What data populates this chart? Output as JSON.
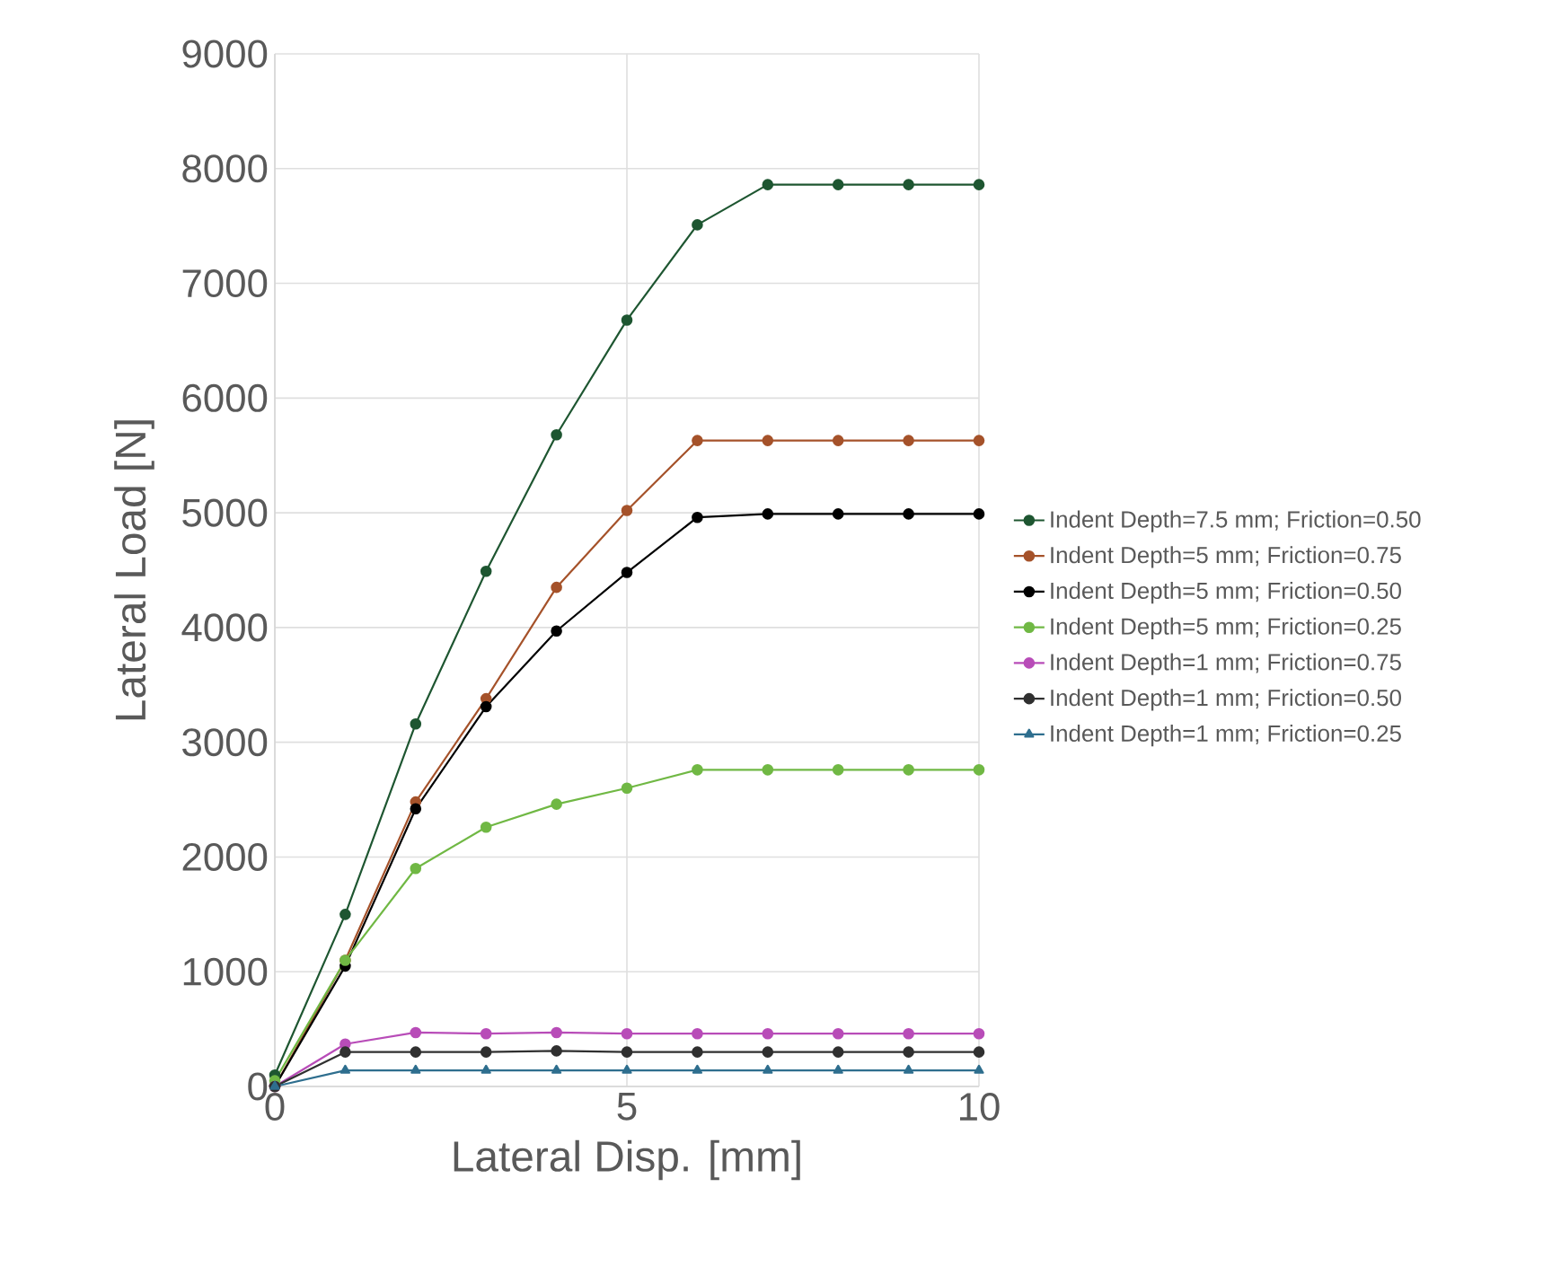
{
  "chart_data": {
    "type": "line",
    "xlabel": "Lateral Disp. [mm]",
    "ylabel": "Lateral Load [N]",
    "x": [
      0,
      1,
      2,
      3,
      4,
      5,
      6,
      7,
      8,
      9,
      10
    ],
    "xlim": [
      0,
      10
    ],
    "xticks": [
      0,
      5,
      10
    ],
    "ylim": [
      0,
      9000
    ],
    "yticks": [
      0,
      1000,
      2000,
      3000,
      4000,
      5000,
      6000,
      7000,
      8000,
      9000
    ],
    "grid": true,
    "legend": "right",
    "marker": "circle",
    "line_style": "solid",
    "series": [
      {
        "name": "Indent Depth=7.5 mm; Friction=0.50",
        "color": "#1e5631",
        "values": [
          100,
          1500,
          3160,
          4490,
          5680,
          6680,
          7510,
          7860,
          7860,
          7860,
          7860
        ]
      },
      {
        "name": "Indent Depth=5 mm; Friction=0.75",
        "color": "#a5522a",
        "values": [
          0,
          1100,
          2480,
          3380,
          4350,
          5020,
          5630,
          5630,
          5630,
          5630,
          5630
        ]
      },
      {
        "name": "Indent Depth=5 mm; Friction=0.50",
        "color": "#000000",
        "values": [
          0,
          1050,
          2420,
          3310,
          3970,
          4480,
          4960,
          4990,
          4990,
          4990,
          4990
        ]
      },
      {
        "name": "Indent Depth=5 mm; Friction=0.25",
        "color": "#70b844",
        "values": [
          50,
          1100,
          1900,
          2260,
          2460,
          2600,
          2760,
          2760,
          2760,
          2760,
          2760
        ]
      },
      {
        "name": "Indent Depth=1 mm; Friction=0.75",
        "color": "#b84cb8",
        "values": [
          0,
          370,
          470,
          460,
          470,
          460,
          460,
          460,
          460,
          460,
          460
        ]
      },
      {
        "name": "Indent Depth=1 mm; Friction=0.50",
        "color": "#303030",
        "values": [
          0,
          300,
          300,
          300,
          310,
          300,
          300,
          300,
          300,
          300,
          300
        ]
      },
      {
        "name": "Indent Depth=1 mm; Friction=0.25",
        "color": "#2e6e8e",
        "marker": "triangle",
        "values": [
          0,
          140,
          140,
          140,
          140,
          140,
          140,
          140,
          140,
          140,
          140
        ]
      }
    ]
  }
}
